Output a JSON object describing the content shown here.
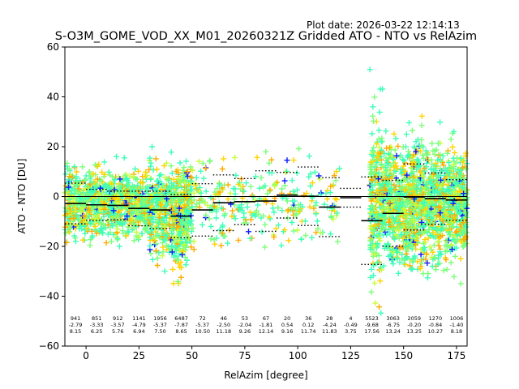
{
  "header": {
    "plot_date": "Plot date: 2026-03-22 12:14:13"
  },
  "chart_data": {
    "type": "scatter",
    "title": "S-O3M_GOME_VOD_XX_M01_20260321Z Gridded ATO - NTO vs RelAzim",
    "xlabel": "RelAzim [degree]",
    "ylabel": "ATO - NTO [DU]",
    "xlim": [
      -10,
      180
    ],
    "ylim": [
      -60,
      60
    ],
    "xticks": [
      0,
      25,
      50,
      75,
      100,
      125,
      150,
      175
    ],
    "yticks": [
      -60,
      -40,
      -20,
      0,
      20,
      40,
      60
    ],
    "grid": false,
    "zero_line": 0,
    "marker": "+",
    "colors": {
      "cyan_green": "#3dffb8",
      "bright_green": "#7dff7a",
      "yellow_green": "#c6ff3a",
      "yellow": "#ffd400",
      "orange": "#ffab00",
      "blue": "#0a1aff",
      "mean_line": "#000000",
      "zero_line": "#000000"
    },
    "bins": [
      {
        "x0": -10,
        "x1": 0,
        "n": "941",
        "mean": -2.79,
        "std": 8.15
      },
      {
        "x0": 0,
        "x1": 10,
        "n": "851",
        "mean": -3.33,
        "std": 6.25
      },
      {
        "x0": 10,
        "x1": 20,
        "n": "912",
        "mean": -3.57,
        "std": 5.76
      },
      {
        "x0": 20,
        "x1": 30,
        "n": "1141",
        "mean": -4.79,
        "std": 6.94
      },
      {
        "x0": 30,
        "x1": 40,
        "n": "1956",
        "mean": -5.37,
        "std": 7.5
      },
      {
        "x0": 40,
        "x1": 50,
        "n": "6487",
        "mean": -7.87,
        "std": 8.65
      },
      {
        "x0": 50,
        "x1": 60,
        "n": "72",
        "mean": -5.37,
        "std": 10.5
      },
      {
        "x0": 60,
        "x1": 70,
        "n": "46",
        "mean": -2.5,
        "std": 11.18
      },
      {
        "x0": 70,
        "x1": 80,
        "n": "53",
        "mean": -2.04,
        "std": 9.26
      },
      {
        "x0": 80,
        "x1": 90,
        "n": "67",
        "mean": -1.81,
        "std": 12.14
      },
      {
        "x0": 90,
        "x1": 100,
        "n": "20",
        "mean": 0.54,
        "std": 9.16
      },
      {
        "x0": 100,
        "x1": 110,
        "n": "36",
        "mean": 0.12,
        "std": 11.74
      },
      {
        "x0": 110,
        "x1": 120,
        "n": "28",
        "mean": -4.24,
        "std": 11.83
      },
      {
        "x0": 120,
        "x1": 130,
        "n": "4",
        "mean": -0.49,
        "std": 3.75
      },
      {
        "x0": 130,
        "x1": 140,
        "n": "5523",
        "mean": -9.68,
        "std": 17.56
      },
      {
        "x0": 140,
        "x1": 150,
        "n": "3063",
        "mean": -6.75,
        "std": 13.24
      },
      {
        "x0": 150,
        "x1": 160,
        "n": "2059",
        "mean": -0.2,
        "std": 13.25
      },
      {
        "x0": 160,
        "x1": 170,
        "n": "1270",
        "mean": -0.84,
        "std": 10.27
      },
      {
        "x0": 170,
        "x1": 180,
        "n": "1006",
        "mean": -1.4,
        "std": 8.18
      }
    ],
    "scatter_clusters": [
      {
        "x_range": [
          -10,
          30
        ],
        "y_range": [
          -22,
          16
        ],
        "density": 1.0
      },
      {
        "x_range": [
          30,
          50
        ],
        "y_range": [
          -30,
          20
        ],
        "density": 1.1
      },
      {
        "x_range": [
          40,
          48
        ],
        "y_range": [
          -42,
          25
        ],
        "density": 0.8
      },
      {
        "x_range": [
          50,
          120
        ],
        "y_range": [
          -26,
          22
        ],
        "density": 0.18
      },
      {
        "x_range": [
          134,
          180
        ],
        "y_range": [
          -35,
          30
        ],
        "density": 1.5
      },
      {
        "x_range": [
          134,
          140
        ],
        "y_range": [
          -58,
          58
        ],
        "density": 0.6
      },
      {
        "x_range": [
          150,
          160
        ],
        "y_range": [
          -45,
          45
        ],
        "density": 0.3
      }
    ]
  }
}
